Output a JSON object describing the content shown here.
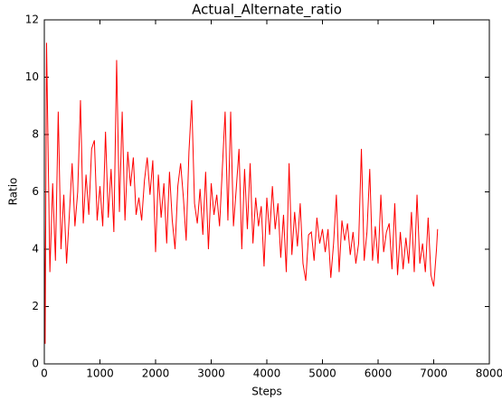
{
  "chart_data": {
    "type": "line",
    "title": "Actual_Alternate_ratio",
    "x_label": "Steps",
    "y_label": "Ratio",
    "x": [
      0,
      15,
      40,
      100,
      150,
      200,
      250,
      300,
      350,
      400,
      450,
      500,
      550,
      600,
      650,
      700,
      750,
      800,
      850,
      900,
      950,
      1000,
      1050,
      1100,
      1150,
      1200,
      1250,
      1300,
      1350,
      1400,
      1450,
      1500,
      1550,
      1600,
      1650,
      1700,
      1750,
      1800,
      1850,
      1900,
      1950,
      2000,
      2050,
      2100,
      2150,
      2200,
      2250,
      2300,
      2350,
      2400,
      2450,
      2500,
      2550,
      2600,
      2650,
      2700,
      2750,
      2800,
      2850,
      2900,
      2950,
      3000,
      3050,
      3100,
      3150,
      3200,
      3250,
      3300,
      3350,
      3400,
      3450,
      3500,
      3550,
      3600,
      3650,
      3700,
      3750,
      3800,
      3850,
      3900,
      3950,
      4000,
      4050,
      4100,
      4150,
      4200,
      4250,
      4300,
      4350,
      4400,
      4450,
      4500,
      4550,
      4600,
      4650,
      4700,
      4750,
      4800,
      4850,
      4900,
      4950,
      5000,
      5050,
      5100,
      5150,
      5200,
      5250,
      5300,
      5350,
      5400,
      5450,
      5500,
      5550,
      5600,
      5650,
      5700,
      5750,
      5800,
      5850,
      5900,
      5950,
      6000,
      6050,
      6100,
      6150,
      6200,
      6250,
      6300,
      6350,
      6400,
      6450,
      6500,
      6550,
      6600,
      6650,
      6700,
      6750,
      6800,
      6850,
      6900,
      6950,
      7000,
      7050,
      7070
    ],
    "series": [
      {
        "name": "Actual_Alternate_ratio",
        "color": "#ff0000",
        "values": [
          5.0,
          0.7,
          11.2,
          3.2,
          6.3,
          3.6,
          8.8,
          4.0,
          5.9,
          3.5,
          5.2,
          7.0,
          4.8,
          6.0,
          9.2,
          4.9,
          6.6,
          5.2,
          7.5,
          7.8,
          5.0,
          6.2,
          4.8,
          8.1,
          5.1,
          6.8,
          4.6,
          10.6,
          5.3,
          8.8,
          5.0,
          7.4,
          6.2,
          7.2,
          5.2,
          5.8,
          5.0,
          6.4,
          7.2,
          5.9,
          7.1,
          3.9,
          6.6,
          5.1,
          6.3,
          4.2,
          6.7,
          5.0,
          4.0,
          6.2,
          7.0,
          5.8,
          4.3,
          7.4,
          9.2,
          5.6,
          4.9,
          6.1,
          4.5,
          6.7,
          4.0,
          6.3,
          5.2,
          5.9,
          4.8,
          6.8,
          8.8,
          5.0,
          8.8,
          4.8,
          6.1,
          7.5,
          4.0,
          6.8,
          4.7,
          7.0,
          4.2,
          5.8,
          4.8,
          5.5,
          3.4,
          5.8,
          4.5,
          6.2,
          4.7,
          5.6,
          3.7,
          5.2,
          3.2,
          7.0,
          3.8,
          5.3,
          4.1,
          5.6,
          3.5,
          2.9,
          4.5,
          4.6,
          3.6,
          5.1,
          4.2,
          4.7,
          3.9,
          4.7,
          3.0,
          4.2,
          5.9,
          3.2,
          5.0,
          4.3,
          4.9,
          3.8,
          4.6,
          3.5,
          4.2,
          7.5,
          3.6,
          4.6,
          6.8,
          3.6,
          4.8,
          3.5,
          5.9,
          3.9,
          4.6,
          4.9,
          3.3,
          5.6,
          3.1,
          4.6,
          3.3,
          4.4,
          3.5,
          5.3,
          3.2,
          5.9,
          3.5,
          4.2,
          3.2,
          5.1,
          3.1,
          2.7,
          4.0,
          4.7
        ]
      }
    ],
    "xlim": [
      0,
      8000
    ],
    "ylim": [
      0,
      12
    ],
    "xticks": [
      0,
      1000,
      2000,
      3000,
      4000,
      5000,
      6000,
      7000,
      8000
    ],
    "yticks": [
      0,
      2,
      4,
      6,
      8,
      10,
      12
    ],
    "grid": false
  }
}
